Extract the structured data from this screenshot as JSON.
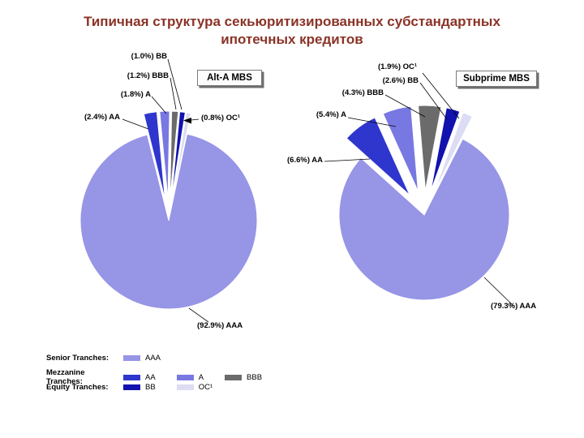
{
  "slide": {
    "title_line1": "Типичная структура секьюритизированных субстандартных",
    "title_line2": "ипотечных кредитов"
  },
  "chart_data": [
    {
      "type": "pie",
      "title": "Alt-A MBS",
      "units": "percent of deal",
      "slices": [
        {
          "label": "AA",
          "value": 2.4,
          "display": "(2.4%) AA",
          "color": "#2f36ce",
          "exploded": true
        },
        {
          "label": "A",
          "value": 1.8,
          "display": "(1.8%) A",
          "color": "#7878e2",
          "exploded": true
        },
        {
          "label": "BBB",
          "value": 1.2,
          "display": "(1.2%) BBB",
          "color": "#6b6b6b",
          "exploded": true
        },
        {
          "label": "BB",
          "value": 1.0,
          "display": "(1.0%) BB",
          "color": "#1212ae",
          "exploded": true
        },
        {
          "label": "OC¹",
          "value": 0.8,
          "display": "(0.8%) OC¹",
          "color": "#dcdcf4",
          "exploded": true
        },
        {
          "label": "AAA",
          "value": 92.9,
          "display": "(92.9%) AAA",
          "color": "#9795e6",
          "exploded": false
        }
      ]
    },
    {
      "type": "pie",
      "title": "Subprime MBS",
      "units": "percent of deal",
      "slices": [
        {
          "label": "AA",
          "value": 6.6,
          "display": "(6.6%) AA",
          "color": "#2f36ce",
          "exploded": true
        },
        {
          "label": "A",
          "value": 5.4,
          "display": "(5.4%) A",
          "color": "#7878e2",
          "exploded": true
        },
        {
          "label": "BBB",
          "value": 4.3,
          "display": "(4.3%) BBB",
          "color": "#6b6b6b",
          "exploded": true
        },
        {
          "label": "BB",
          "value": 2.6,
          "display": "(2.6%) BB",
          "color": "#1212ae",
          "exploded": true
        },
        {
          "label": "OC¹",
          "value": 1.9,
          "display": "(1.9%) OC¹",
          "color": "#dcdcf4",
          "exploded": true
        },
        {
          "label": "AAA",
          "value": 79.3,
          "display": "(79.3%) AAA",
          "color": "#9795e6",
          "exploded": false
        }
      ]
    }
  ],
  "legend": {
    "rows": [
      {
        "title": "Senior Tranches:",
        "items": [
          {
            "label": "AAA",
            "color": "#9795e6"
          }
        ]
      },
      {
        "title": "Mezzanine Tranches:",
        "items": [
          {
            "label": "AA",
            "color": "#2f36ce"
          },
          {
            "label": "A",
            "color": "#7878e2"
          },
          {
            "label": "BBB",
            "color": "#6b6b6b"
          }
        ]
      },
      {
        "title": "Equity Tranches:",
        "items": [
          {
            "label": "BB",
            "color": "#1212ae"
          },
          {
            "label": "OC¹",
            "color": "#dcdcf4"
          }
        ]
      }
    ]
  }
}
